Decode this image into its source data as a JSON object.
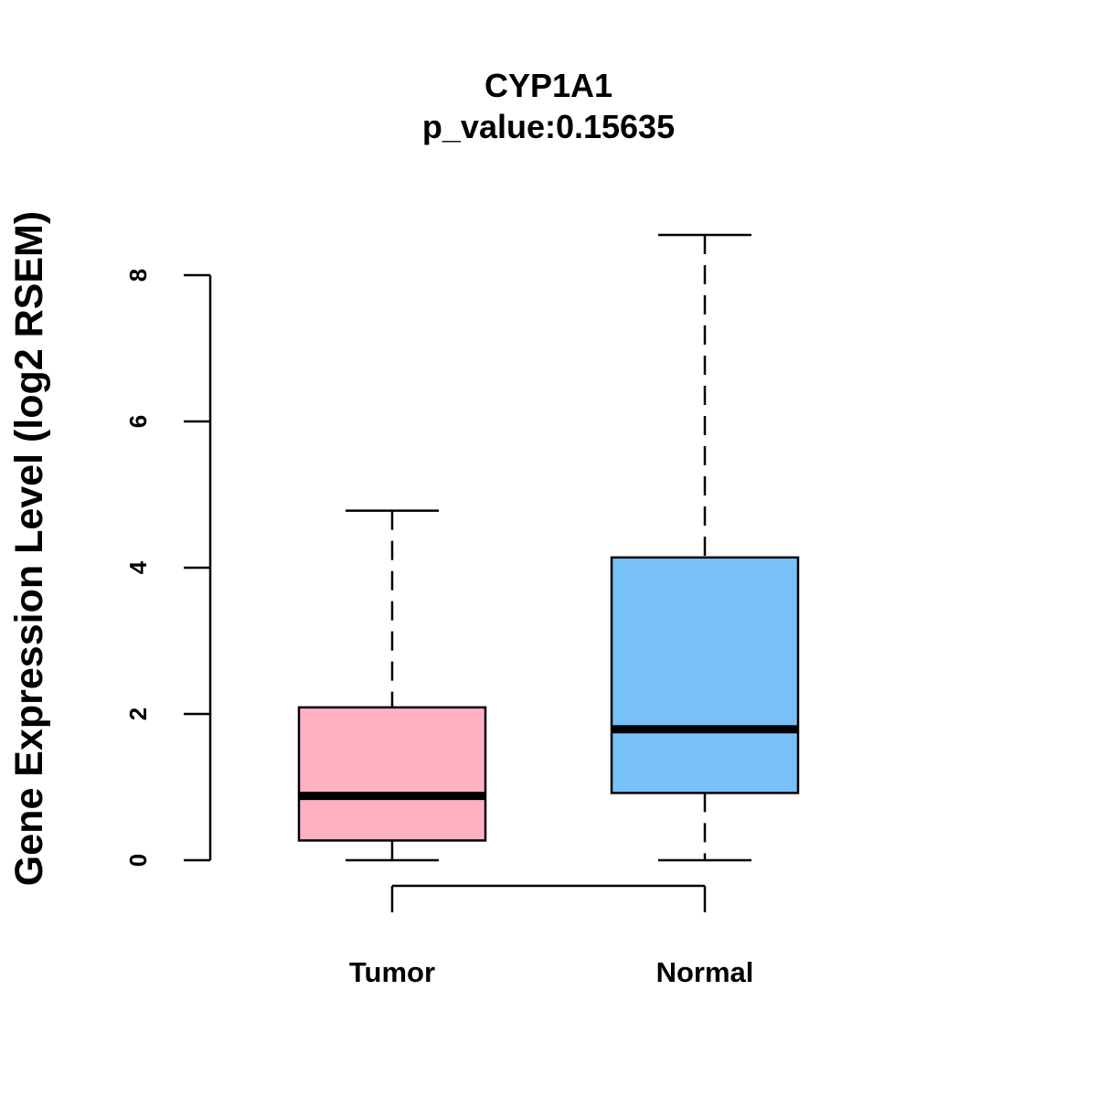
{
  "chart_data": {
    "type": "boxplot",
    "title": "CYP1A1",
    "subtitle": "p_value:0.15635",
    "xlabel": "",
    "ylabel": "Gene Expression Level (log2 RSEM)",
    "ylim": [
      0,
      8
    ],
    "yticks": [
      0,
      2,
      4,
      6,
      8
    ],
    "grid": false,
    "categories": [
      "Tumor",
      "Normal"
    ],
    "series": [
      {
        "name": "Tumor",
        "whisker_low": 0.0,
        "q1": 0.27,
        "median": 0.88,
        "q3": 2.09,
        "whisker_high": 4.78,
        "color": "#FFB0C3"
      },
      {
        "name": "Normal",
        "whisker_low": 0.0,
        "q1": 0.92,
        "median": 1.79,
        "q3": 4.14,
        "whisker_high": 8.55,
        "color": "#78C1F8"
      }
    ]
  }
}
